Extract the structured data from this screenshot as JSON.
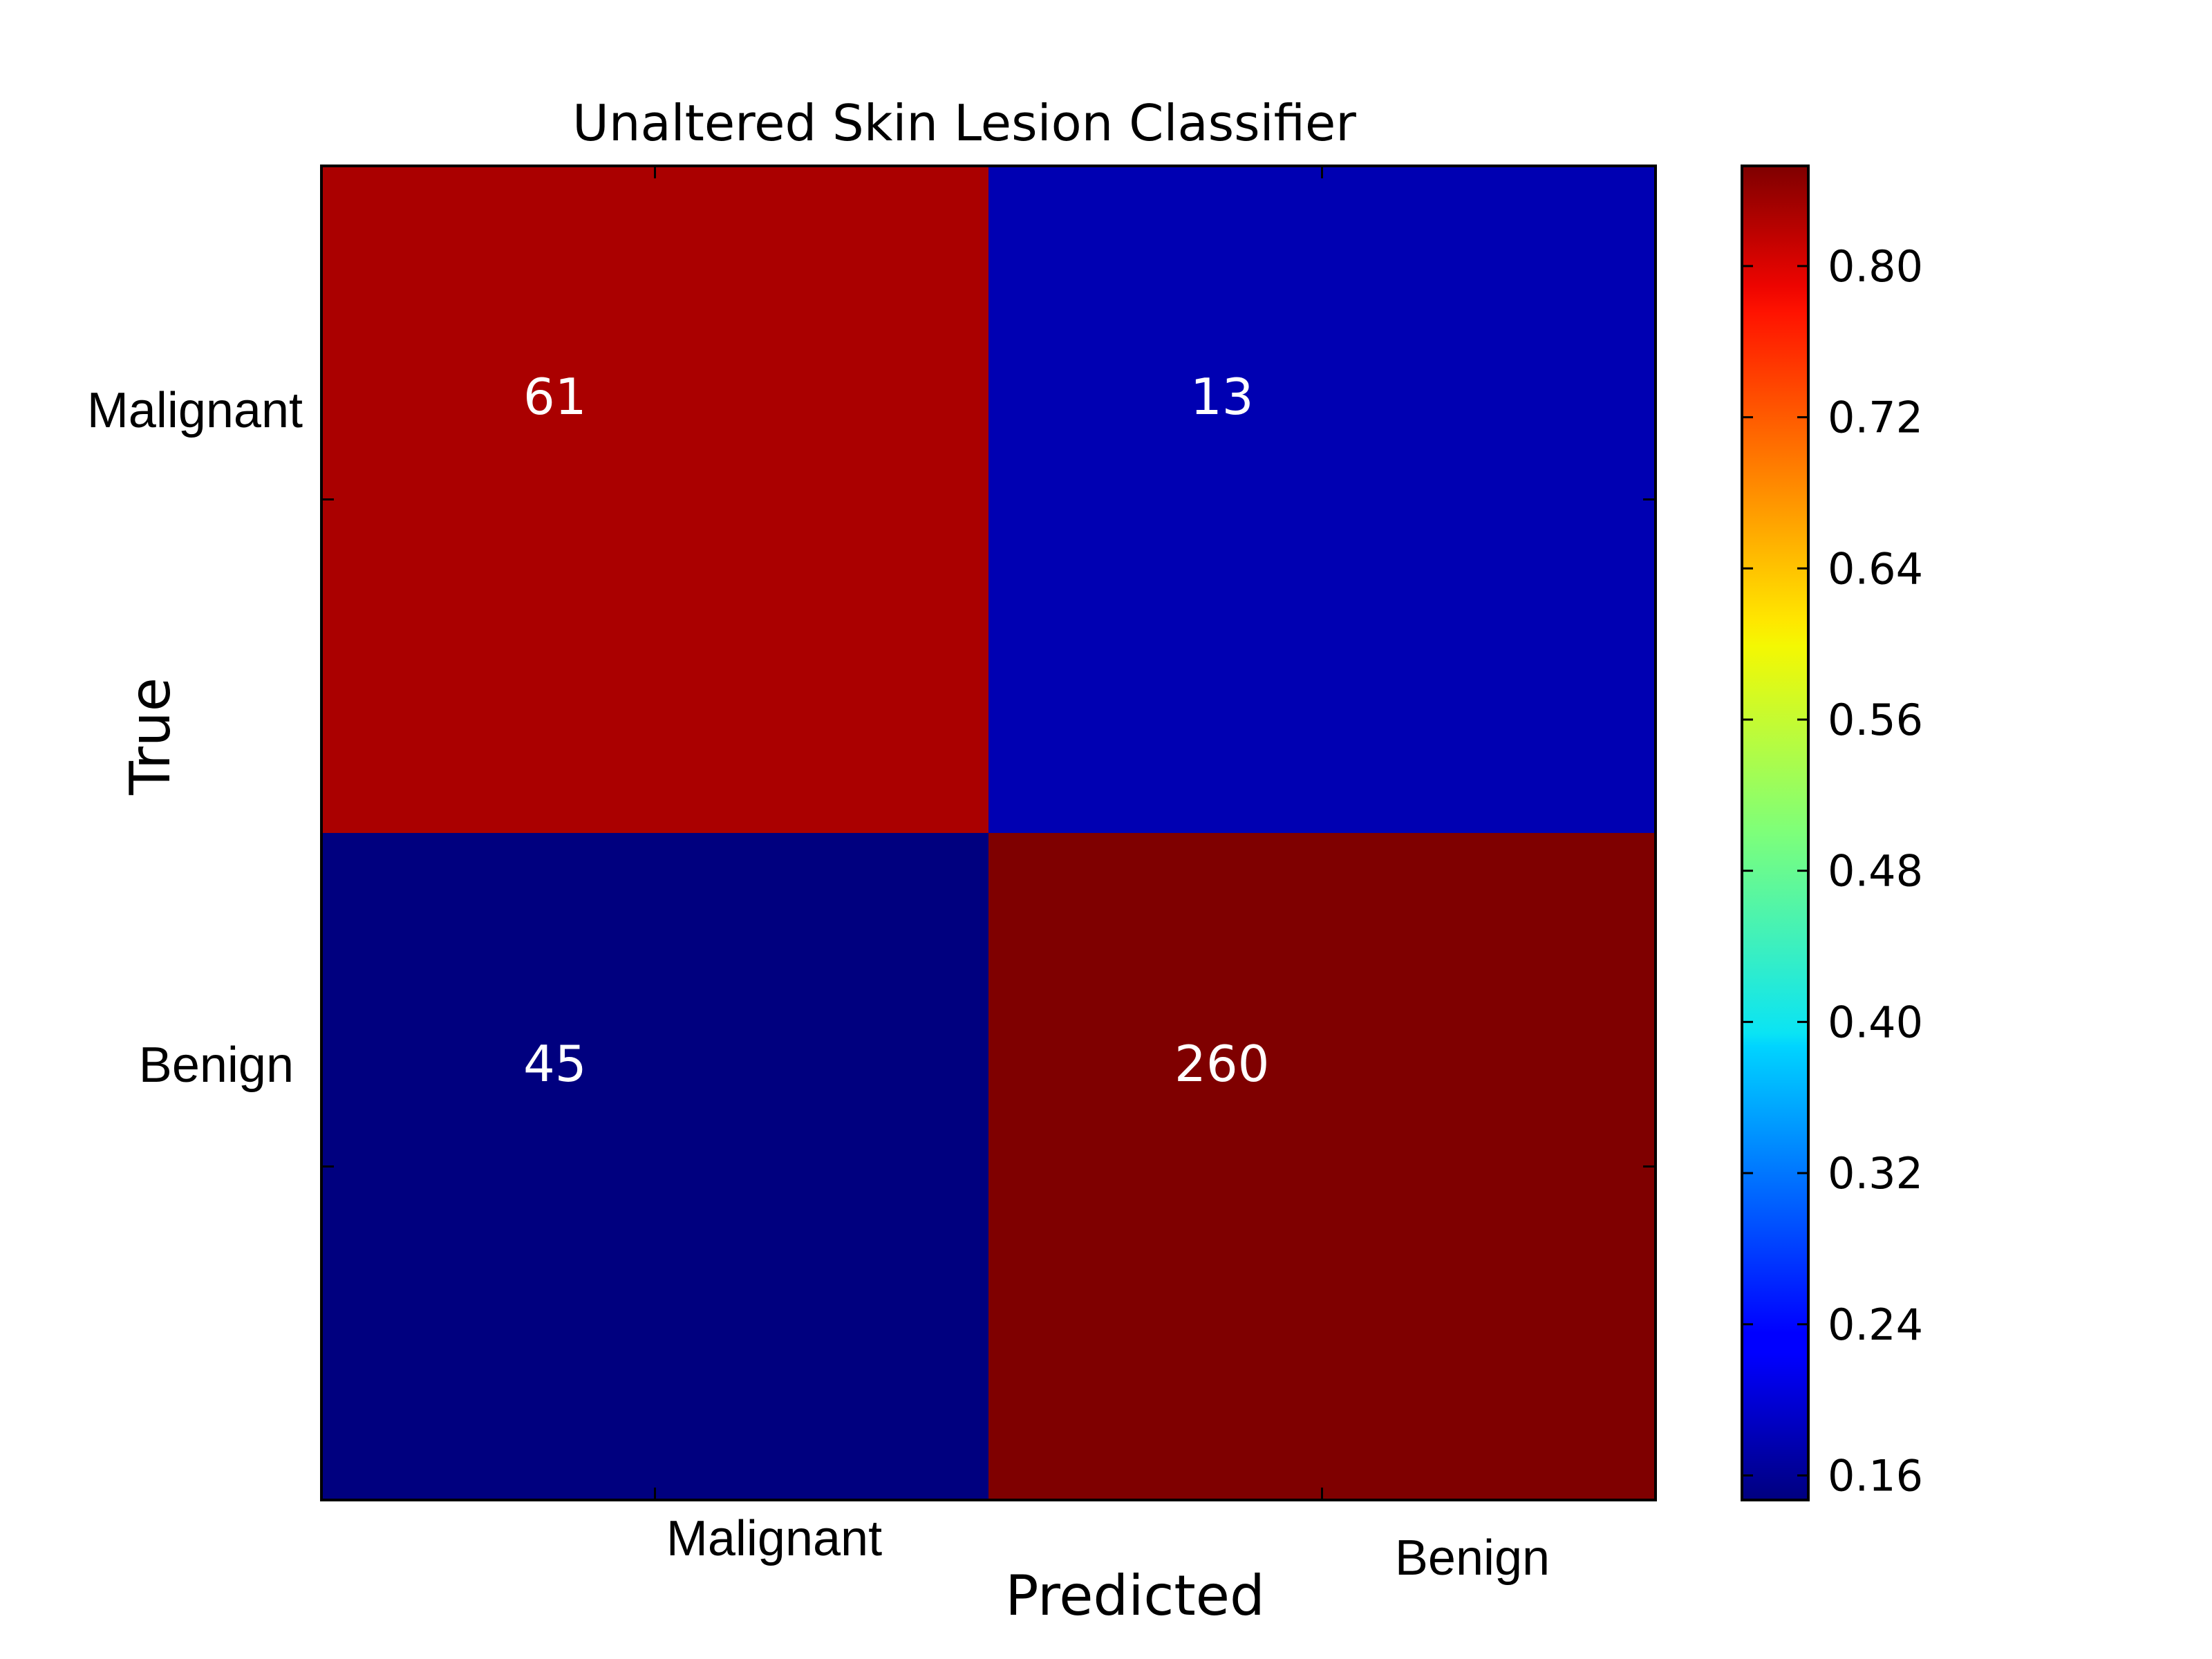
{
  "chart_data": {
    "type": "heatmap",
    "title": "Unaltered Skin Lesion Classifier",
    "xlabel": "Predicted",
    "ylabel": "True",
    "x_categories": [
      "Malignant",
      "Benign"
    ],
    "y_categories": [
      "Malignant",
      "Benign"
    ],
    "cells": [
      {
        "row": 0,
        "col": 0,
        "count": "61",
        "value": 0.82,
        "color": "#aa0000"
      },
      {
        "row": 0,
        "col": 1,
        "count": "13",
        "value": 0.18,
        "color": "#0000b2"
      },
      {
        "row": 1,
        "col": 0,
        "count": "45",
        "value": 0.15,
        "color": "#00007f"
      },
      {
        "row": 1,
        "col": 1,
        "count": "260",
        "value": 0.85,
        "color": "#7f0000"
      }
    ],
    "colorbar": {
      "colormap": "jet",
      "range": [
        0.147,
        0.853
      ],
      "ticks": [
        "0.16",
        "0.24",
        "0.32",
        "0.40",
        "0.48",
        "0.56",
        "0.64",
        "0.72",
        "0.80"
      ]
    },
    "cell_text_color": "#ffffff",
    "grid": false
  }
}
